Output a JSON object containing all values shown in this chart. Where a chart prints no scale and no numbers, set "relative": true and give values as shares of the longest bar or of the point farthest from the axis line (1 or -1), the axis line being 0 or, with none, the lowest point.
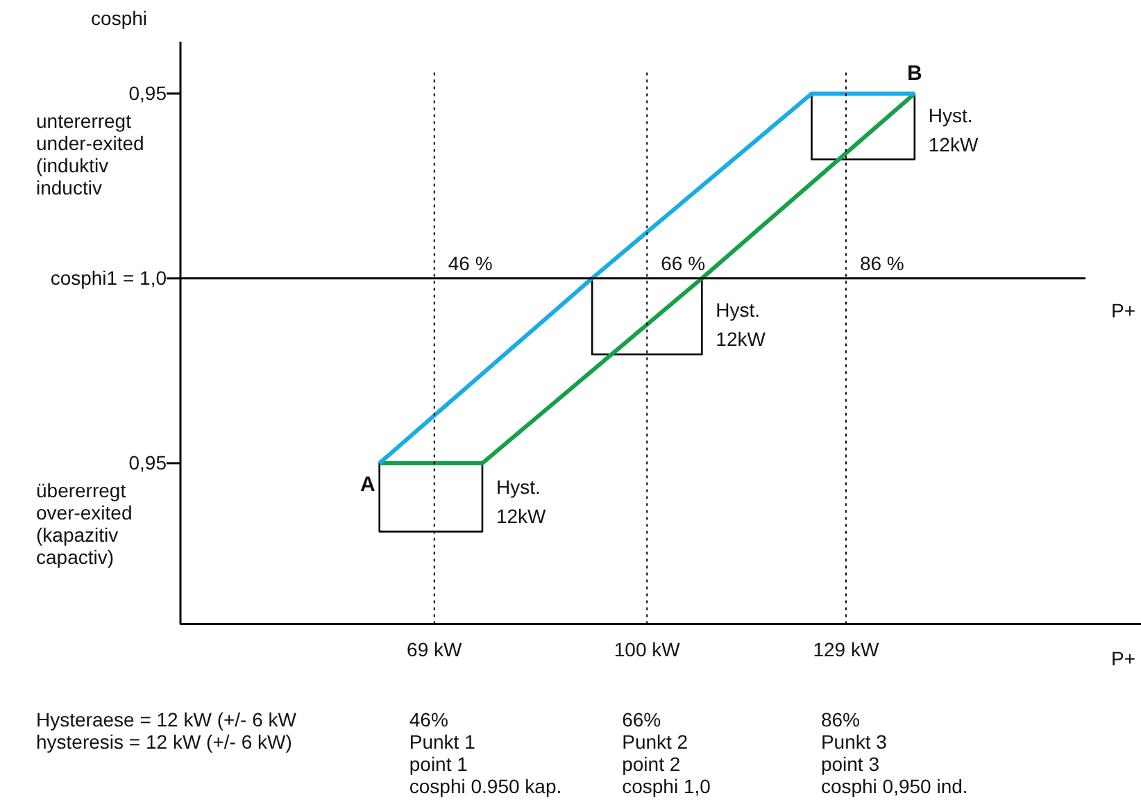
{
  "chart_data": {
    "type": "line",
    "ylabel": "cosphi",
    "xlabel": "P+",
    "relative": true,
    "xlim": [
      32,
      172
    ],
    "xticks": [
      {
        "value": 69,
        "label": "69 kW"
      },
      {
        "value": 100,
        "label": "100 kW"
      },
      {
        "value": 129,
        "label": "129 kW"
      }
    ],
    "grid": false,
    "legend": false,
    "marker": "none",
    "line_style": "solid",
    "series": [
      {
        "color": "#1aace6",
        "x": [
          61,
          92,
          124,
          139
        ],
        "values": [
          -0.73,
          0,
          0.73,
          0.73
        ]
      },
      {
        "color": "#17a04a",
        "x": [
          61,
          76,
          108,
          139
        ],
        "values": [
          -0.73,
          -0.73,
          0,
          0.73
        ]
      },
      {
        "color": "#000000",
        "x": [
          61,
          61,
          76,
          76
        ],
        "values": [
          -0.73,
          -1,
          -1,
          -0.73
        ]
      },
      {
        "color": "#000000",
        "x": [
          92,
          92,
          108,
          108
        ],
        "values": [
          0,
          -0.3,
          -0.3,
          0
        ]
      },
      {
        "color": "#000000",
        "x": [
          124,
          124,
          139,
          139
        ],
        "values": [
          0.73,
          0.47,
          0.47,
          0.73
        ]
      }
    ],
    "ref_lines": [
      {
        "axis": "x",
        "value": 69,
        "line_style": "dotted",
        "color": "#000000"
      },
      {
        "axis": "x",
        "value": 100,
        "line_style": "dotted",
        "color": "#000000"
      },
      {
        "axis": "x",
        "value": 129,
        "line_style": "dotted",
        "color": "#000000"
      },
      {
        "axis": "y",
        "value": 0,
        "label": "P+",
        "line_style": "solid",
        "color": "#000000"
      }
    ],
    "annotations": [
      "0,95",
      "cosphi1 = 1,0",
      "0,95",
      {
        "text": "46 %",
        "x": 69,
        "y": 0
      },
      {
        "text": "66 %",
        "x": 100,
        "y": 0
      },
      {
        "text": "86 %",
        "x": 129,
        "y": 0
      },
      {
        "text": "Hyst.\n12kW",
        "x": 76,
        "y": -1
      },
      {
        "text": "Hyst.\n12kW",
        "x": 108,
        "y": -0.3
      },
      {
        "text": "Hyst.\n12kW",
        "x": 139,
        "y": 0.47
      },
      {
        "text": "A",
        "x": 61,
        "y": -0.73
      },
      {
        "text": "B",
        "x": 139,
        "y": 0.73
      },
      "untererregt\nunder-exited\n(induktiv\ninductiv",
      "übererregt\nover-exited\n(kapazitiv\ncapactiv)",
      "Hysteraese = 12 kW (+/- 6 kW\nhysteresis = 12 kW (+/- 6 kW)",
      "46%\nPunkt 1\npoint 1\ncosphi 0.950 kap.",
      "66%\nPunkt 2\npoint 2\ncosphi 1,0",
      "86%\nPunkt 3\npoint 3\ncosphi 0,950 ind."
    ]
  }
}
